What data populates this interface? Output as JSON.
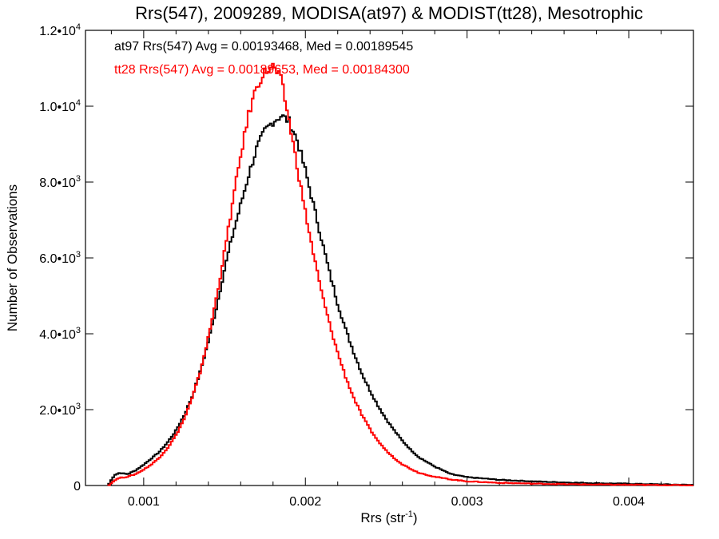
{
  "chart_data": {
    "type": "line",
    "title": "Rrs(547), 2009289, MODISA(at97) & MODIST(tt28), Mesotrophic",
    "xlabel_base": "Rrs (str",
    "xlabel_sup": "-1",
    "xlabel_end": ")",
    "ylabel": "Number of Observations",
    "xlim": [
      0.00064,
      0.0044
    ],
    "ylim": [
      0,
      12000
    ],
    "xticks": [
      {
        "value": 0.001,
        "label": "0.001"
      },
      {
        "value": 0.002,
        "label": "0.002"
      },
      {
        "value": 0.003,
        "label": "0.003"
      },
      {
        "value": 0.004,
        "label": "0.004"
      }
    ],
    "yticks": [
      {
        "value": 0,
        "mant": "0",
        "exp": ""
      },
      {
        "value": 2000,
        "mant": "2.0•10",
        "exp": "3"
      },
      {
        "value": 4000,
        "mant": "4.0•10",
        "exp": "3"
      },
      {
        "value": 6000,
        "mant": "6.0•10",
        "exp": "3"
      },
      {
        "value": 8000,
        "mant": "8.0•10",
        "exp": "3"
      },
      {
        "value": 10000,
        "mant": "1.0•10",
        "exp": "4"
      },
      {
        "value": 12000,
        "mant": "1.2•10",
        "exp": "4"
      }
    ],
    "series": [
      {
        "name": "at97",
        "color": "#000000",
        "legend": "at97 Rrs(547) Avg = 0.00193468, Med = 0.00189545",
        "x": [
          0.00078,
          0.0008,
          0.00082,
          0.00085,
          0.0009,
          0.00095,
          0.001,
          0.00105,
          0.0011,
          0.00115,
          0.0012,
          0.00125,
          0.0013,
          0.00135,
          0.0014,
          0.00145,
          0.0015,
          0.00155,
          0.0016,
          0.00165,
          0.0017,
          0.00175,
          0.0018,
          0.00185,
          0.0019,
          0.00195,
          0.002,
          0.00205,
          0.0021,
          0.00215,
          0.0022,
          0.00225,
          0.0023,
          0.00235,
          0.0024,
          0.00245,
          0.0025,
          0.00255,
          0.0026,
          0.00265,
          0.0027,
          0.0028,
          0.0029,
          0.003,
          0.0032,
          0.0034,
          0.0036,
          0.0038,
          0.004,
          0.0042,
          0.0044
        ],
        "y": [
          0,
          150,
          280,
          330,
          300,
          400,
          550,
          720,
          900,
          1150,
          1450,
          1850,
          2350,
          3000,
          3800,
          4700,
          5700,
          6600,
          7400,
          8200,
          8900,
          9350,
          9600,
          9750,
          9600,
          9100,
          8300,
          7400,
          6500,
          5600,
          4800,
          4100,
          3500,
          2950,
          2500,
          2100,
          1750,
          1450,
          1180,
          950,
          750,
          500,
          300,
          220,
          150,
          110,
          80,
          60,
          45,
          30,
          15
        ]
      },
      {
        "name": "tt28",
        "color": "#ff0000",
        "legend": "tt28 Rrs(547) Avg = 0.00189653, Med = 0.00184300",
        "x": [
          0.00078,
          0.0008,
          0.00082,
          0.00085,
          0.0009,
          0.00095,
          0.001,
          0.00105,
          0.0011,
          0.00115,
          0.0012,
          0.00125,
          0.0013,
          0.00135,
          0.0014,
          0.00145,
          0.0015,
          0.00155,
          0.0016,
          0.00165,
          0.0017,
          0.00175,
          0.0018,
          0.00185,
          0.0019,
          0.00195,
          0.002,
          0.00205,
          0.0021,
          0.00215,
          0.0022,
          0.00225,
          0.0023,
          0.00235,
          0.0024,
          0.00245,
          0.0025,
          0.00255,
          0.0026,
          0.00265,
          0.0027,
          0.0028,
          0.0029,
          0.003,
          0.0032,
          0.0034,
          0.0036,
          0.0038,
          0.004,
          0.0042,
          0.0044
        ],
        "y": [
          0,
          60,
          140,
          200,
          230,
          300,
          420,
          560,
          750,
          1000,
          1330,
          1750,
          2300,
          3000,
          3900,
          4950,
          6150,
          7450,
          8700,
          9800,
          10550,
          10900,
          11050,
          10700,
          9600,
          8400,
          7200,
          6100,
          5100,
          4250,
          3500,
          2850,
          2300,
          1850,
          1480,
          1170,
          920,
          720,
          560,
          440,
          340,
          230,
          160,
          110,
          70,
          50,
          35,
          25,
          18,
          12,
          5
        ]
      }
    ]
  }
}
